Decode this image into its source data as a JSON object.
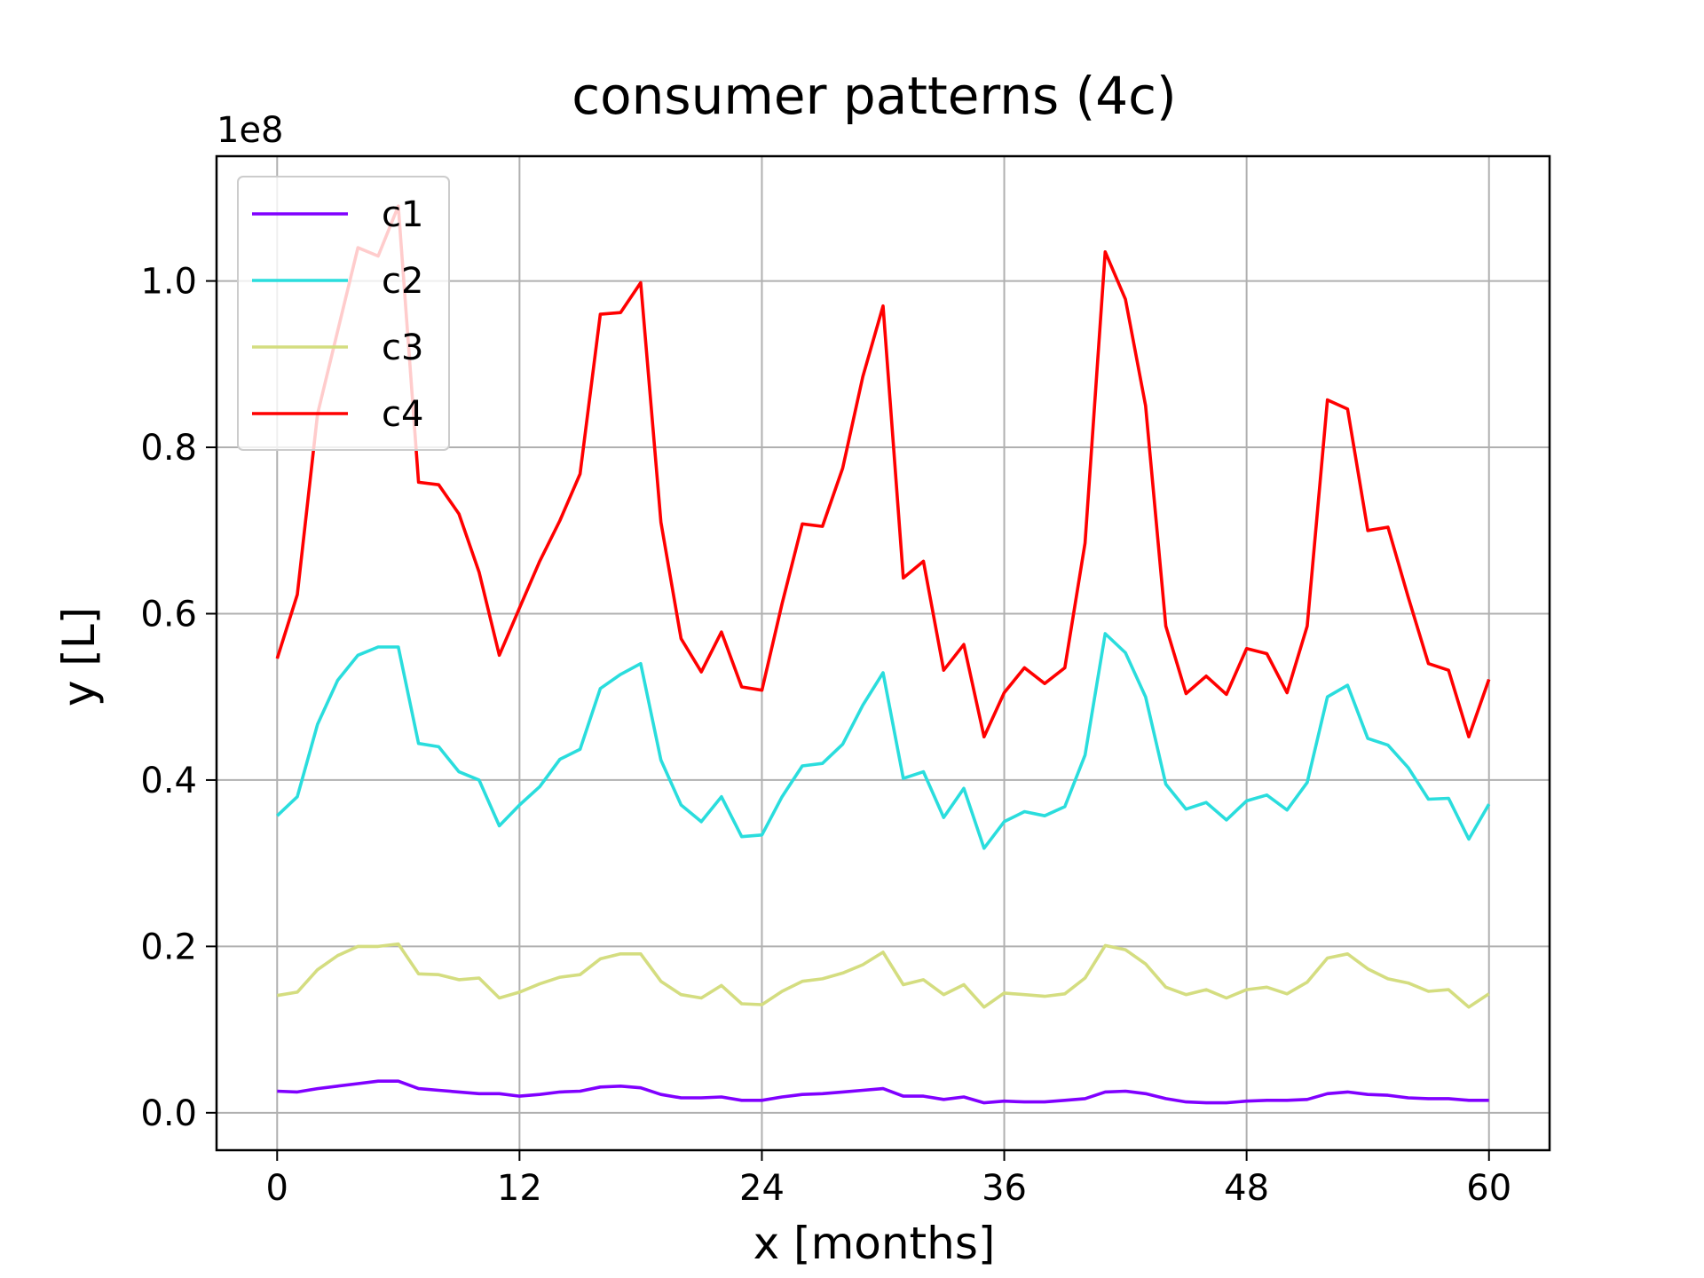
{
  "chart_data": {
    "type": "line",
    "title": "consumer patterns (4c)",
    "xlabel": "x [months]",
    "ylabel": "y [L]",
    "y_offset_label": "1e8",
    "xlim": [
      -3,
      63
    ],
    "ylim": [
      -0.045,
      1.15
    ],
    "x_ticks": [
      0,
      12,
      24,
      36,
      48,
      60
    ],
    "x_tick_labels": [
      "0",
      "12",
      "24",
      "36",
      "48",
      "60"
    ],
    "y_ticks": [
      0.0,
      0.2,
      0.4,
      0.6,
      0.8,
      1.0
    ],
    "y_tick_labels": [
      "0.0",
      "0.2",
      "0.4",
      "0.6",
      "0.8",
      "1.0"
    ],
    "grid": true,
    "legend_position": "top-left",
    "x": [
      0,
      1,
      2,
      3,
      4,
      5,
      6,
      7,
      8,
      9,
      10,
      11,
      12,
      13,
      14,
      15,
      16,
      17,
      18,
      19,
      20,
      21,
      22,
      23,
      24,
      25,
      26,
      27,
      28,
      29,
      30,
      31,
      32,
      33,
      34,
      35,
      36,
      37,
      38,
      39,
      40,
      41,
      42,
      43,
      44,
      45,
      46,
      47,
      48,
      49,
      50,
      51,
      52,
      53,
      54,
      55,
      56,
      57,
      58,
      59,
      60
    ],
    "series": [
      {
        "name": "c1",
        "color": "#8000ff",
        "values": [
          0.026,
          0.025,
          0.029,
          0.032,
          0.035,
          0.038,
          0.038,
          0.029,
          0.027,
          0.025,
          0.023,
          0.023,
          0.02,
          0.022,
          0.025,
          0.026,
          0.031,
          0.032,
          0.03,
          0.022,
          0.018,
          0.018,
          0.019,
          0.015,
          0.015,
          0.019,
          0.022,
          0.023,
          0.025,
          0.027,
          0.029,
          0.02,
          0.02,
          0.016,
          0.019,
          0.012,
          0.014,
          0.013,
          0.013,
          0.015,
          0.017,
          0.025,
          0.026,
          0.023,
          0.017,
          0.013,
          0.012,
          0.012,
          0.014,
          0.015,
          0.015,
          0.016,
          0.023,
          0.025,
          0.022,
          0.021,
          0.018,
          0.017,
          0.017,
          0.015,
          0.015
        ]
      },
      {
        "name": "c2",
        "color": "#2adddd",
        "values": [
          0.357,
          0.38,
          0.467,
          0.52,
          0.55,
          0.56,
          0.56,
          0.444,
          0.44,
          0.41,
          0.4,
          0.345,
          0.37,
          0.392,
          0.425,
          0.437,
          0.51,
          0.527,
          0.54,
          0.424,
          0.37,
          0.35,
          0.38,
          0.332,
          0.334,
          0.38,
          0.417,
          0.42,
          0.443,
          0.49,
          0.529,
          0.402,
          0.41,
          0.355,
          0.39,
          0.318,
          0.35,
          0.362,
          0.357,
          0.368,
          0.43,
          0.576,
          0.553,
          0.5,
          0.395,
          0.365,
          0.373,
          0.352,
          0.375,
          0.382,
          0.364,
          0.397,
          0.5,
          0.514,
          0.45,
          0.442,
          0.415,
          0.377,
          0.378,
          0.329,
          0.371
        ]
      },
      {
        "name": "c3",
        "color": "#d4dd80",
        "values": [
          0.141,
          0.145,
          0.172,
          0.189,
          0.2,
          0.2,
          0.203,
          0.167,
          0.166,
          0.16,
          0.162,
          0.138,
          0.145,
          0.155,
          0.163,
          0.166,
          0.185,
          0.191,
          0.191,
          0.158,
          0.142,
          0.138,
          0.153,
          0.131,
          0.13,
          0.146,
          0.158,
          0.161,
          0.168,
          0.178,
          0.193,
          0.154,
          0.16,
          0.142,
          0.154,
          0.127,
          0.144,
          0.142,
          0.14,
          0.143,
          0.162,
          0.201,
          0.196,
          0.179,
          0.151,
          0.142,
          0.148,
          0.138,
          0.148,
          0.151,
          0.143,
          0.157,
          0.186,
          0.191,
          0.173,
          0.161,
          0.156,
          0.146,
          0.148,
          0.127,
          0.143
        ]
      },
      {
        "name": "c4",
        "color": "#ff0000",
        "values": [
          0.546,
          0.623,
          0.84,
          0.94,
          1.04,
          1.03,
          1.09,
          0.758,
          0.755,
          0.72,
          0.65,
          0.55,
          0.607,
          0.663,
          0.712,
          0.768,
          0.96,
          0.962,
          0.998,
          0.71,
          0.57,
          0.53,
          0.578,
          0.512,
          0.508,
          0.612,
          0.708,
          0.705,
          0.775,
          0.885,
          0.97,
          0.643,
          0.663,
          0.532,
          0.563,
          0.452,
          0.505,
          0.535,
          0.516,
          0.535,
          0.685,
          1.035,
          0.978,
          0.85,
          0.585,
          0.504,
          0.525,
          0.503,
          0.558,
          0.552,
          0.505,
          0.585,
          0.857,
          0.846,
          0.7,
          0.704,
          0.62,
          0.54,
          0.532,
          0.452,
          0.521
        ]
      }
    ]
  }
}
